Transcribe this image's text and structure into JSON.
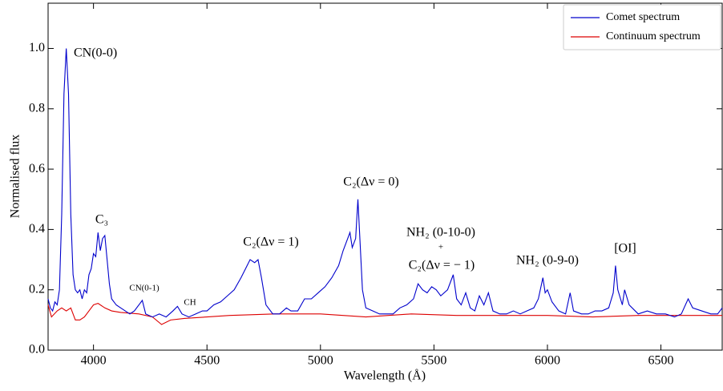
{
  "chart_data": {
    "type": "line",
    "xlabel": "Wavelength (Å)",
    "ylabel": "Normalised flux",
    "xlim": [
      3800,
      6770
    ],
    "ylim": [
      0,
      1.15
    ],
    "xticks": [
      4000,
      4500,
      5000,
      5500,
      6000,
      6500
    ],
    "yticks": [
      {
        "value": 0,
        "label": "0.0"
      },
      0.2,
      0.4,
      0.6,
      0.8,
      {
        "value": 1,
        "label": "1.0"
      }
    ],
    "legend": "upper right",
    "annotations": [
      "CN(0-0)",
      "C₃",
      "CN(0-1)",
      "CH",
      "C₂(Δν = 1)",
      "C₂(Δν = 0)",
      "NH₂ (0-10-0)",
      "+",
      "C₂(Δν = − 1)",
      "NH₂ (0-9-0)",
      "[OI]"
    ],
    "series": [
      {
        "name": "Comet spectrum",
        "color": "#0000cc",
        "x": [
          3800,
          3810,
          3820,
          3830,
          3840,
          3850,
          3860,
          3870,
          3880,
          3890,
          3900,
          3910,
          3920,
          3930,
          3940,
          3950,
          3960,
          3970,
          3980,
          3990,
          4000,
          4010,
          4020,
          4030,
          4040,
          4050,
          4060,
          4070,
          4080,
          4100,
          4120,
          4140,
          4160,
          4180,
          4200,
          4215,
          4230,
          4260,
          4290,
          4320,
          4350,
          4370,
          4390,
          4420,
          4450,
          4480,
          4500,
          4530,
          4560,
          4590,
          4620,
          4650,
          4670,
          4690,
          4710,
          4725,
          4740,
          4760,
          4790,
          4820,
          4850,
          4870,
          4900,
          4930,
          4960,
          4990,
          5020,
          5050,
          5080,
          5100,
          5120,
          5130,
          5140,
          5155,
          5165,
          5175,
          5185,
          5200,
          5230,
          5260,
          5290,
          5320,
          5350,
          5380,
          5410,
          5430,
          5450,
          5470,
          5490,
          5510,
          5530,
          5560,
          5585,
          5600,
          5620,
          5640,
          5660,
          5680,
          5700,
          5720,
          5740,
          5760,
          5790,
          5820,
          5850,
          5880,
          5910,
          5940,
          5960,
          5980,
          5990,
          6000,
          6020,
          6050,
          6080,
          6100,
          6115,
          6150,
          6180,
          6210,
          6240,
          6270,
          6290,
          6300,
          6310,
          6330,
          6340,
          6360,
          6400,
          6440,
          6480,
          6520,
          6560,
          6590,
          6620,
          6640,
          6680,
          6720,
          6750,
          6770
        ],
        "values": [
          0.17,
          0.14,
          0.13,
          0.16,
          0.15,
          0.2,
          0.45,
          0.85,
          1.0,
          0.85,
          0.45,
          0.25,
          0.2,
          0.19,
          0.2,
          0.17,
          0.2,
          0.19,
          0.25,
          0.27,
          0.32,
          0.31,
          0.39,
          0.33,
          0.37,
          0.38,
          0.3,
          0.22,
          0.17,
          0.15,
          0.14,
          0.13,
          0.12,
          0.13,
          0.15,
          0.165,
          0.12,
          0.11,
          0.12,
          0.11,
          0.13,
          0.145,
          0.12,
          0.11,
          0.12,
          0.13,
          0.13,
          0.15,
          0.16,
          0.18,
          0.2,
          0.24,
          0.27,
          0.3,
          0.29,
          0.3,
          0.24,
          0.15,
          0.12,
          0.12,
          0.14,
          0.13,
          0.13,
          0.17,
          0.17,
          0.19,
          0.21,
          0.24,
          0.28,
          0.33,
          0.37,
          0.39,
          0.34,
          0.37,
          0.5,
          0.35,
          0.2,
          0.14,
          0.13,
          0.12,
          0.12,
          0.12,
          0.14,
          0.15,
          0.17,
          0.22,
          0.2,
          0.19,
          0.21,
          0.2,
          0.18,
          0.2,
          0.25,
          0.17,
          0.15,
          0.19,
          0.14,
          0.13,
          0.18,
          0.15,
          0.19,
          0.13,
          0.12,
          0.12,
          0.13,
          0.12,
          0.13,
          0.14,
          0.17,
          0.24,
          0.19,
          0.2,
          0.16,
          0.13,
          0.12,
          0.19,
          0.13,
          0.12,
          0.12,
          0.13,
          0.13,
          0.14,
          0.19,
          0.28,
          0.2,
          0.15,
          0.2,
          0.15,
          0.12,
          0.13,
          0.12,
          0.12,
          0.11,
          0.12,
          0.17,
          0.14,
          0.13,
          0.12,
          0.12,
          0.14
        ]
      },
      {
        "name": "Continuum spectrum",
        "color": "#dd0000",
        "x": [
          3800,
          3815,
          3840,
          3860,
          3880,
          3900,
          3920,
          3940,
          3960,
          3980,
          4000,
          4020,
          4050,
          4080,
          4120,
          4200,
          4260,
          4300,
          4340,
          4400,
          4500,
          4600,
          4800,
          5000,
          5200,
          5400,
          5600,
          5800,
          6000,
          6200,
          6400,
          6770
        ],
        "values": [
          0.15,
          0.11,
          0.13,
          0.14,
          0.13,
          0.14,
          0.1,
          0.1,
          0.11,
          0.13,
          0.15,
          0.155,
          0.14,
          0.13,
          0.125,
          0.12,
          0.11,
          0.085,
          0.1,
          0.105,
          0.11,
          0.115,
          0.12,
          0.12,
          0.11,
          0.12,
          0.115,
          0.115,
          0.115,
          0.11,
          0.115,
          0.115
        ]
      }
    ]
  }
}
